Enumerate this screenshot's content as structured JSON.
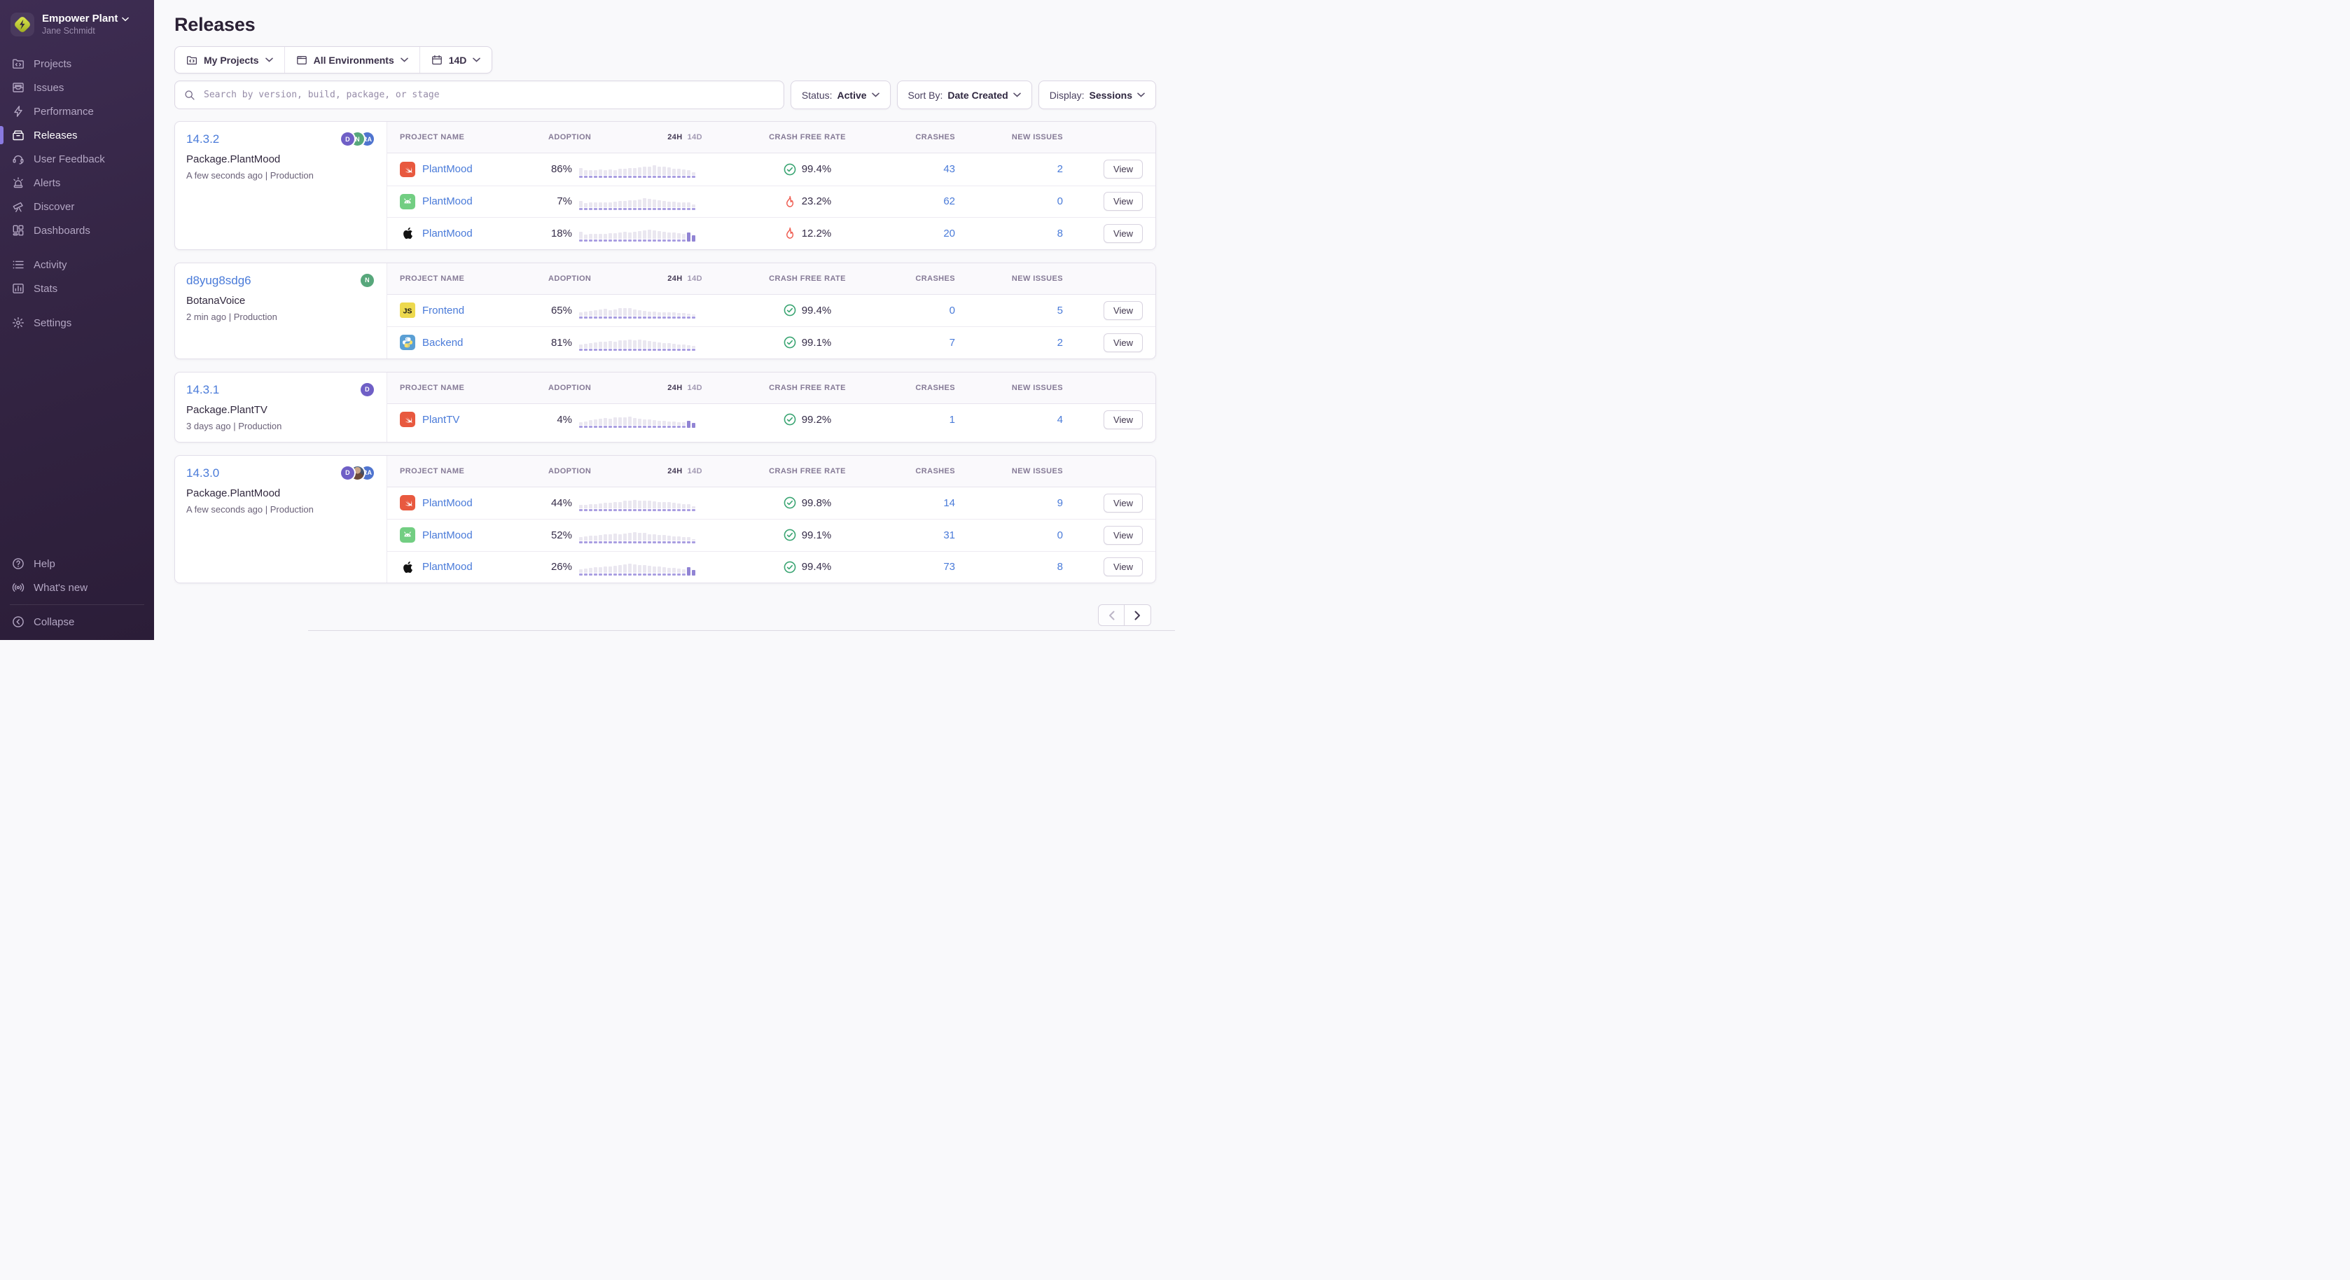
{
  "sidebar": {
    "org": {
      "name": "Empower Plant",
      "user": "Jane Schmidt"
    },
    "nav": [
      {
        "label": "Projects",
        "icon": "projects"
      },
      {
        "label": "Issues",
        "icon": "issues"
      },
      {
        "label": "Performance",
        "icon": "performance"
      },
      {
        "label": "Releases",
        "icon": "releases",
        "active": true
      },
      {
        "label": "User Feedback",
        "icon": "user-feedback"
      },
      {
        "label": "Alerts",
        "icon": "alerts"
      },
      {
        "label": "Discover",
        "icon": "discover"
      },
      {
        "label": "Dashboards",
        "icon": "dashboards"
      }
    ],
    "nav_secondary": [
      {
        "label": "Activity",
        "icon": "activity"
      },
      {
        "label": "Stats",
        "icon": "stats"
      }
    ],
    "nav_tertiary": [
      {
        "label": "Settings",
        "icon": "settings"
      }
    ],
    "nav_footer": [
      {
        "label": "Help",
        "icon": "help"
      },
      {
        "label": "What's new",
        "icon": "whats-new"
      }
    ],
    "collapse": {
      "label": "Collapse",
      "icon": "collapse"
    }
  },
  "page": {
    "title": "Releases"
  },
  "filters": {
    "project": "My Projects",
    "environment": "All Environments",
    "date_range": "14D",
    "search_placeholder": "Search by version, build, package, or stage",
    "status": {
      "label": "Status:",
      "value": "Active"
    },
    "sort": {
      "label": "Sort By:",
      "value": "Date Created"
    },
    "display": {
      "label": "Display:",
      "value": "Sessions"
    }
  },
  "table": {
    "project": "Project Name",
    "adoption": "Adoption",
    "range_24h": "24H",
    "range_14d": "14D",
    "crash_free": "Crash Free Rate",
    "crashes": "Crashes",
    "new_issues": "New Issues",
    "view": "View"
  },
  "releases": [
    {
      "version": "14.3.2",
      "package": "Package.PlantMood",
      "meta": "A few seconds ago | Production",
      "avatars": [
        {
          "initials": "D",
          "color": "#6F5FC6"
        },
        {
          "initials": "N",
          "color": "#57A77B"
        },
        {
          "initials": "RA",
          "color": "#4F74CF"
        }
      ],
      "rows": [
        {
          "platform": "swift",
          "project": "PlantMood",
          "adoption": "86%",
          "crash_free": "99.4%",
          "status": "ok",
          "crashes": "43",
          "new_issues": "2",
          "highlight": 0,
          "bars": [
            68,
            45,
            48,
            46,
            50,
            47,
            53,
            49,
            57,
            63,
            67,
            65,
            71,
            77,
            83,
            90,
            82,
            78,
            71,
            63,
            60,
            56,
            48,
            28
          ]
        },
        {
          "platform": "android",
          "project": "PlantMood",
          "adoption": "7%",
          "crash_free": "23.2%",
          "status": "fire",
          "crashes": "62",
          "new_issues": "0",
          "highlight": 0,
          "bars": [
            62,
            43,
            45,
            47,
            45,
            49,
            47,
            53,
            58,
            61,
            65,
            69,
            75,
            84,
            80,
            73,
            65,
            58,
            53,
            55,
            49,
            45,
            47,
            25
          ]
        },
        {
          "platform": "apple",
          "project": "PlantMood",
          "adoption": "18%",
          "crash_free": "12.2%",
          "status": "fire",
          "crashes": "20",
          "new_issues": "8",
          "highlight": 2,
          "bars": [
            64,
            43,
            46,
            45,
            49,
            47,
            51,
            55,
            61,
            65,
            63,
            69,
            73,
            81,
            88,
            79,
            75,
            67,
            61,
            57,
            53,
            49,
            58,
            32
          ]
        }
      ]
    },
    {
      "version": "d8yug8sdg6",
      "package": "BotanaVoice",
      "meta": "2 min ago | Production",
      "avatars": [
        {
          "initials": "N",
          "color": "#57A77B"
        }
      ],
      "rows": [
        {
          "platform": "js",
          "project": "Frontend",
          "adoption": "65%",
          "crash_free": "99.4%",
          "status": "ok",
          "crashes": "0",
          "new_issues": "5",
          "highlight": 0,
          "bars": [
            30,
            38,
            45,
            53,
            58,
            64,
            55,
            61,
            70,
            76,
            72,
            63,
            55,
            49,
            42,
            38,
            36,
            34,
            32,
            30,
            28,
            26,
            23,
            15
          ]
        },
        {
          "platform": "python",
          "project": "Backend",
          "adoption": "81%",
          "crash_free": "99.1%",
          "status": "ok",
          "crashes": "7",
          "new_issues": "2",
          "highlight": 0,
          "bars": [
            32,
            38,
            47,
            53,
            59,
            63,
            68,
            63,
            70,
            76,
            80,
            74,
            78,
            72,
            65,
            61,
            55,
            49,
            44,
            40,
            36,
            31,
            27,
            17
          ]
        }
      ]
    },
    {
      "version": "14.3.1",
      "package": "Package.PlantTV",
      "meta": "3 days ago | Production",
      "avatars": [
        {
          "initials": "D",
          "color": "#6F5FC6"
        }
      ],
      "rows": [
        {
          "platform": "swift",
          "project": "PlantTV",
          "adoption": "4%",
          "crash_free": "99.2%",
          "status": "ok",
          "crashes": "1",
          "new_issues": "4",
          "highlight": 2,
          "bars": [
            28,
            36,
            45,
            55,
            61,
            68,
            63,
            70,
            76,
            72,
            78,
            68,
            61,
            55,
            51,
            46,
            42,
            38,
            36,
            32,
            29,
            25,
            38,
            17
          ]
        }
      ]
    },
    {
      "version": "14.3.0",
      "package": "Package.PlantMood",
      "meta": "A few seconds ago | Production",
      "avatars": [
        {
          "initials": "D",
          "color": "#6F5FC6"
        },
        {
          "photo": true
        },
        {
          "initials": "RA",
          "color": "#4F74CF"
        }
      ],
      "rows": [
        {
          "platform": "swift",
          "project": "PlantMood",
          "adoption": "44%",
          "crash_free": "99.8%",
          "status": "ok",
          "crashes": "14",
          "new_issues": "9",
          "highlight": 0,
          "bars": [
            32,
            36,
            42,
            40,
            46,
            51,
            55,
            59,
            63,
            70,
            76,
            82,
            76,
            70,
            74,
            67,
            61,
            63,
            57,
            51,
            46,
            42,
            38,
            19
          ]
        },
        {
          "platform": "android",
          "project": "PlantMood",
          "adoption": "52%",
          "crash_free": "99.1%",
          "status": "ok",
          "crashes": "31",
          "new_issues": "0",
          "highlight": 0,
          "bars": [
            30,
            38,
            45,
            49,
            53,
            57,
            61,
            65,
            61,
            67,
            74,
            80,
            76,
            70,
            63,
            59,
            55,
            51,
            46,
            42,
            38,
            34,
            30,
            15
          ]
        },
        {
          "platform": "apple",
          "project": "PlantMood",
          "adoption": "26%",
          "crash_free": "99.4%",
          "status": "ok",
          "crashes": "73",
          "new_issues": "8",
          "highlight": 2,
          "bars": [
            34,
            40,
            46,
            51,
            55,
            59,
            63,
            67,
            72,
            78,
            84,
            80,
            74,
            70,
            65,
            61,
            57,
            53,
            48,
            44,
            40,
            36,
            53,
            27
          ]
        }
      ]
    }
  ],
  "pagination": {
    "prev_enabled": false,
    "next_enabled": true
  },
  "colors": {
    "accent": "#8A7AE0",
    "link": "#4A7BD9",
    "success": "#3BA573",
    "danger": "#EE5A4E",
    "sidebar_top": "#3E2D53",
    "sidebar_bottom": "#2B1D38"
  }
}
